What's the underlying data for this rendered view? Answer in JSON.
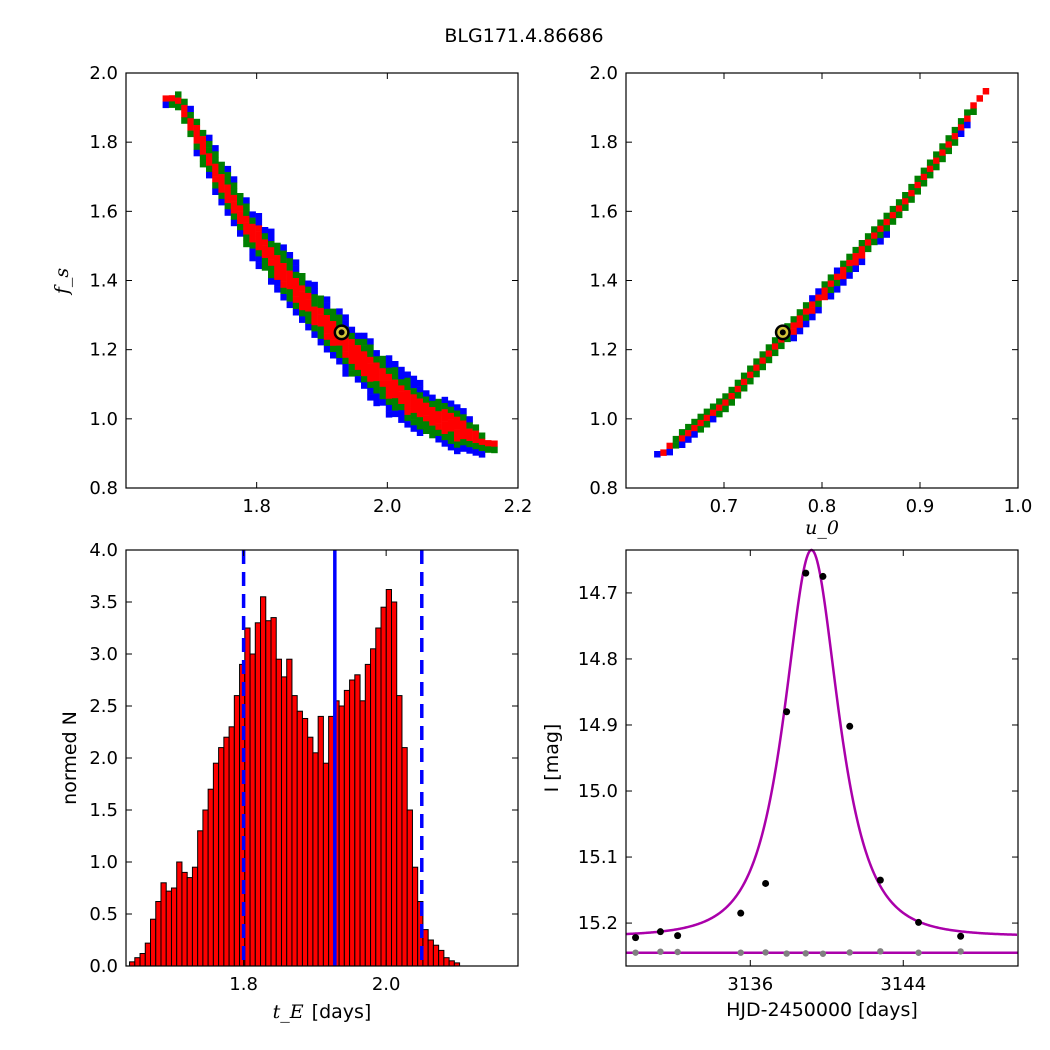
{
  "figure_title": "BLG171.4.86686",
  "chart_data": [
    {
      "type": "heatmap",
      "panel": "top-left",
      "xlabel": "",
      "ylabel": "f_s",
      "xlim": [
        1.6,
        2.2
      ],
      "ylim": [
        0.8,
        2.0
      ],
      "xticks": [
        "1.8",
        "2.0",
        "2.2"
      ],
      "yticks": [
        "0.8",
        "1.0",
        "1.2",
        "1.4",
        "1.6",
        "1.8",
        "2.0"
      ],
      "density_levels": [
        {
          "name": "outer",
          "color": "#0000ff"
        },
        {
          "name": "middle",
          "color": "#008000"
        },
        {
          "name": "inner",
          "color": "#ff0000"
        }
      ],
      "ridge": [
        [
          1.675,
          1.93
        ],
        [
          1.72,
          1.77
        ],
        [
          1.78,
          1.57
        ],
        [
          1.84,
          1.42
        ],
        [
          1.9,
          1.28
        ],
        [
          1.96,
          1.17
        ],
        [
          2.02,
          1.07
        ],
        [
          2.08,
          1.0
        ],
        [
          2.15,
          0.93
        ]
      ],
      "best_fit": {
        "x": 1.93,
        "y": 1.25
      }
    },
    {
      "type": "heatmap",
      "panel": "top-right",
      "xlabel": "u_0",
      "ylabel": "",
      "xlim": [
        0.6,
        1.0
      ],
      "ylim": [
        0.8,
        2.0
      ],
      "xticks": [
        "0.7",
        "0.8",
        "0.9",
        "1.0"
      ],
      "yticks": [
        "0.8",
        "1.0",
        "1.2",
        "1.4",
        "1.6",
        "1.8",
        "2.0"
      ],
      "ridge": [
        [
          0.635,
          0.915
        ],
        [
          0.7,
          1.06
        ],
        [
          0.76,
          1.25
        ],
        [
          0.82,
          1.44
        ],
        [
          0.88,
          1.63
        ],
        [
          0.93,
          1.82
        ],
        [
          0.97,
          1.985
        ]
      ],
      "best_fit": {
        "x": 0.76,
        "y": 1.25
      }
    },
    {
      "type": "bar",
      "panel": "bottom-left",
      "xlabel": "t_E",
      "xlabel_unit": "[days]",
      "ylabel": "normed N",
      "xlim": [
        1.635,
        2.185
      ],
      "ylim": [
        0.0,
        4.0
      ],
      "xticks": [
        "1.8",
        "2.0"
      ],
      "yticks": [
        "0.0",
        "0.5",
        "1.0",
        "1.5",
        "2.0",
        "2.5",
        "3.0",
        "3.5",
        "4.0"
      ],
      "bin_start": 1.64,
      "bin_width": 0.00735,
      "values": [
        0.04,
        0.08,
        0.12,
        0.22,
        0.45,
        0.62,
        0.8,
        0.72,
        0.75,
        1.0,
        0.9,
        0.85,
        0.95,
        1.3,
        1.5,
        1.7,
        1.95,
        2.1,
        2.2,
        2.3,
        2.6,
        2.9,
        3.25,
        3.0,
        3.3,
        3.55,
        3.32,
        3.35,
        2.95,
        2.78,
        2.95,
        2.6,
        2.45,
        2.38,
        2.2,
        2.05,
        2.4,
        1.95,
        2.4,
        2.55,
        2.5,
        2.65,
        2.75,
        2.8,
        2.55,
        2.9,
        3.05,
        3.25,
        3.45,
        3.62,
        3.5,
        2.6,
        2.1,
        1.5,
        0.95,
        0.62,
        0.35,
        0.25,
        0.2,
        0.15,
        0.08,
        0.05,
        0.03
      ],
      "bar_color": "#ff0000",
      "markers": [
        {
          "style": "dashed",
          "x": 1.8
        },
        {
          "style": "solid",
          "x": 1.928
        },
        {
          "style": "dashed",
          "x": 2.05
        }
      ],
      "marker_color": "#0000ff"
    },
    {
      "type": "line",
      "panel": "bottom-right",
      "xlabel": "HJD-2450000 [days]",
      "ylabel": "I [mag]",
      "xlim": [
        3129.5,
        3150.0
      ],
      "ylim": [
        15.265,
        14.635
      ],
      "xticks": [
        "3136",
        "3144"
      ],
      "yticks": [
        "14.7",
        "14.8",
        "14.9",
        "15.0",
        "15.1",
        "15.2"
      ],
      "model": {
        "peak_time": 3139.2,
        "peak_mag": 14.635,
        "baseline_mag": 15.22,
        "timescale": 1.93,
        "u0": 0.76,
        "fs": 1.25,
        "color": "#aa00aa"
      },
      "baseline_line": {
        "mag": 15.245,
        "color": "#aa00aa"
      },
      "points": [
        {
          "t": 3130.0,
          "mag": 15.222
        },
        {
          "t": 3131.3,
          "mag": 15.213
        },
        {
          "t": 3132.2,
          "mag": 15.219
        },
        {
          "t": 3135.5,
          "mag": 15.185
        },
        {
          "t": 3136.8,
          "mag": 15.14
        },
        {
          "t": 3137.9,
          "mag": 14.88
        },
        {
          "t": 3138.9,
          "mag": 14.67
        },
        {
          "t": 3139.8,
          "mag": 14.675
        },
        {
          "t": 3141.2,
          "mag": 14.902
        },
        {
          "t": 3142.8,
          "mag": 15.135
        },
        {
          "t": 3144.8,
          "mag": 15.199
        },
        {
          "t": 3147.0,
          "mag": 15.22
        }
      ],
      "residual_points": [
        3130.0,
        3131.3,
        3132.2,
        3135.5,
        3136.8,
        3137.9,
        3138.9,
        3139.8,
        3141.2,
        3142.8,
        3144.8,
        3147.0
      ],
      "point_color": "#000000",
      "residual_color": "#808080"
    }
  ]
}
